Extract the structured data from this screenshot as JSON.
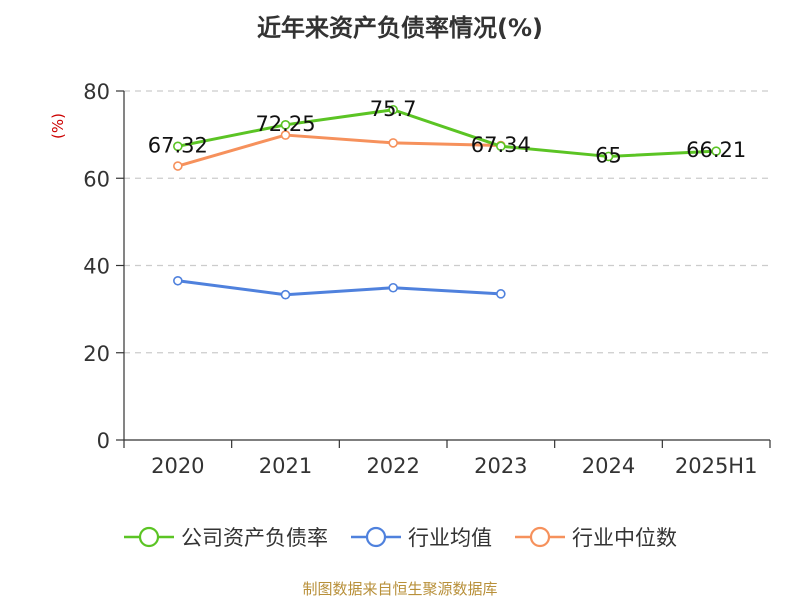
{
  "chart_data": {
    "type": "line",
    "title": "近年来资产负债率情况(%)",
    "xlabel": "",
    "ylabel": "(%)",
    "categories": [
      "2020",
      "2021",
      "2022",
      "2023",
      "2024",
      "2025H1"
    ],
    "ylim": [
      0,
      80
    ],
    "yticks": [
      0,
      20,
      40,
      60,
      80
    ],
    "grid": true,
    "legend_position": "bottom",
    "series": [
      {
        "name": "公司资产负债率",
        "color": "#5bc424",
        "values": [
          67.32,
          72.25,
          75.7,
          67.34,
          65,
          66.21
        ],
        "labels": [
          "67.32",
          "72.25",
          "75.7",
          "67.34",
          "65",
          "66.21"
        ]
      },
      {
        "name": "行业均值",
        "color": "#4f81dd",
        "values": [
          36.5,
          33.3,
          34.9,
          33.5,
          null,
          null
        ]
      },
      {
        "name": "行业中位数",
        "color": "#f6915c",
        "values": [
          62.8,
          69.9,
          68.1,
          67.5,
          null,
          null
        ]
      }
    ]
  },
  "source_note": "制图数据来自恒生聚源数据库"
}
